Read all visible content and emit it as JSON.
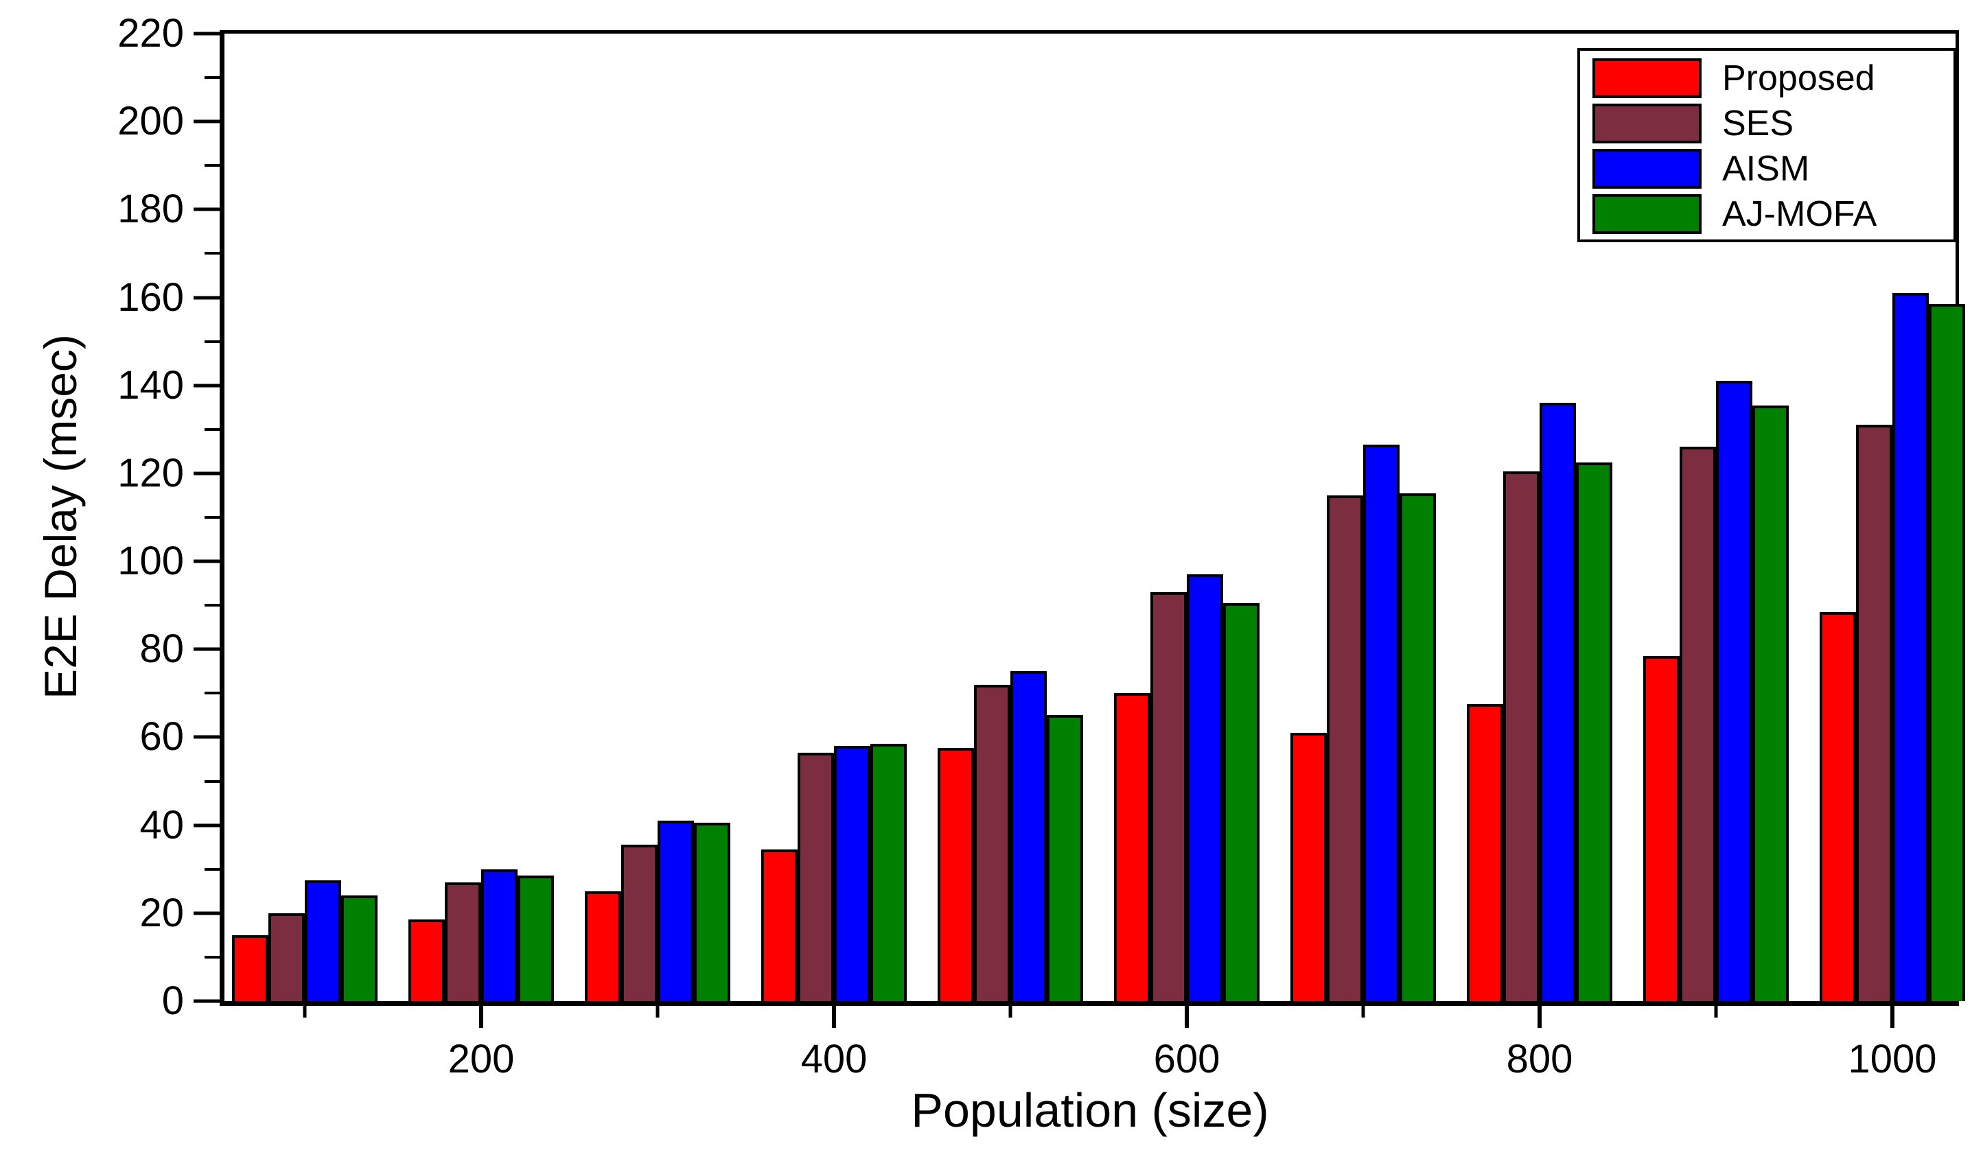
{
  "chart_data": {
    "type": "bar",
    "title": "",
    "xlabel": "Population (size)",
    "ylabel": "E2E Delay (msec)",
    "categories": [
      100,
      200,
      300,
      400,
      500,
      600,
      700,
      800,
      900,
      1000
    ],
    "x_labeled_ticks": [
      200,
      400,
      600,
      800,
      1000
    ],
    "series": [
      {
        "name": "Proposed",
        "color": "#FF0000",
        "values": [
          15,
          18.5,
          25,
          34.5,
          57.5,
          70,
          61,
          67.5,
          78.5,
          88.5
        ]
      },
      {
        "name": "SES",
        "color": "#7C2E40",
        "values": [
          20,
          27,
          35.5,
          56.5,
          72,
          93,
          115,
          120.5,
          126,
          131
        ]
      },
      {
        "name": "AISM",
        "color": "#0000FF",
        "values": [
          27.5,
          30,
          41,
          58,
          75,
          97,
          126.5,
          136,
          141,
          161
        ]
      },
      {
        "name": "AJ-MOFA",
        "color": "#008000",
        "values": [
          24,
          28.5,
          40.5,
          58.5,
          65,
          90.5,
          115.5,
          122.5,
          135.5,
          158.5
        ]
      }
    ],
    "ylim": [
      0,
      220
    ],
    "y_major_step": 20,
    "y_minor_step": 10,
    "y_tick_labels": [
      "0",
      "20",
      "40",
      "60",
      "80",
      "100",
      "120",
      "140",
      "160",
      "180",
      "200",
      "220"
    ],
    "grid": false,
    "legend_position": "top-right",
    "axis_color": "#000000",
    "background_color": "#FFFFFF"
  }
}
